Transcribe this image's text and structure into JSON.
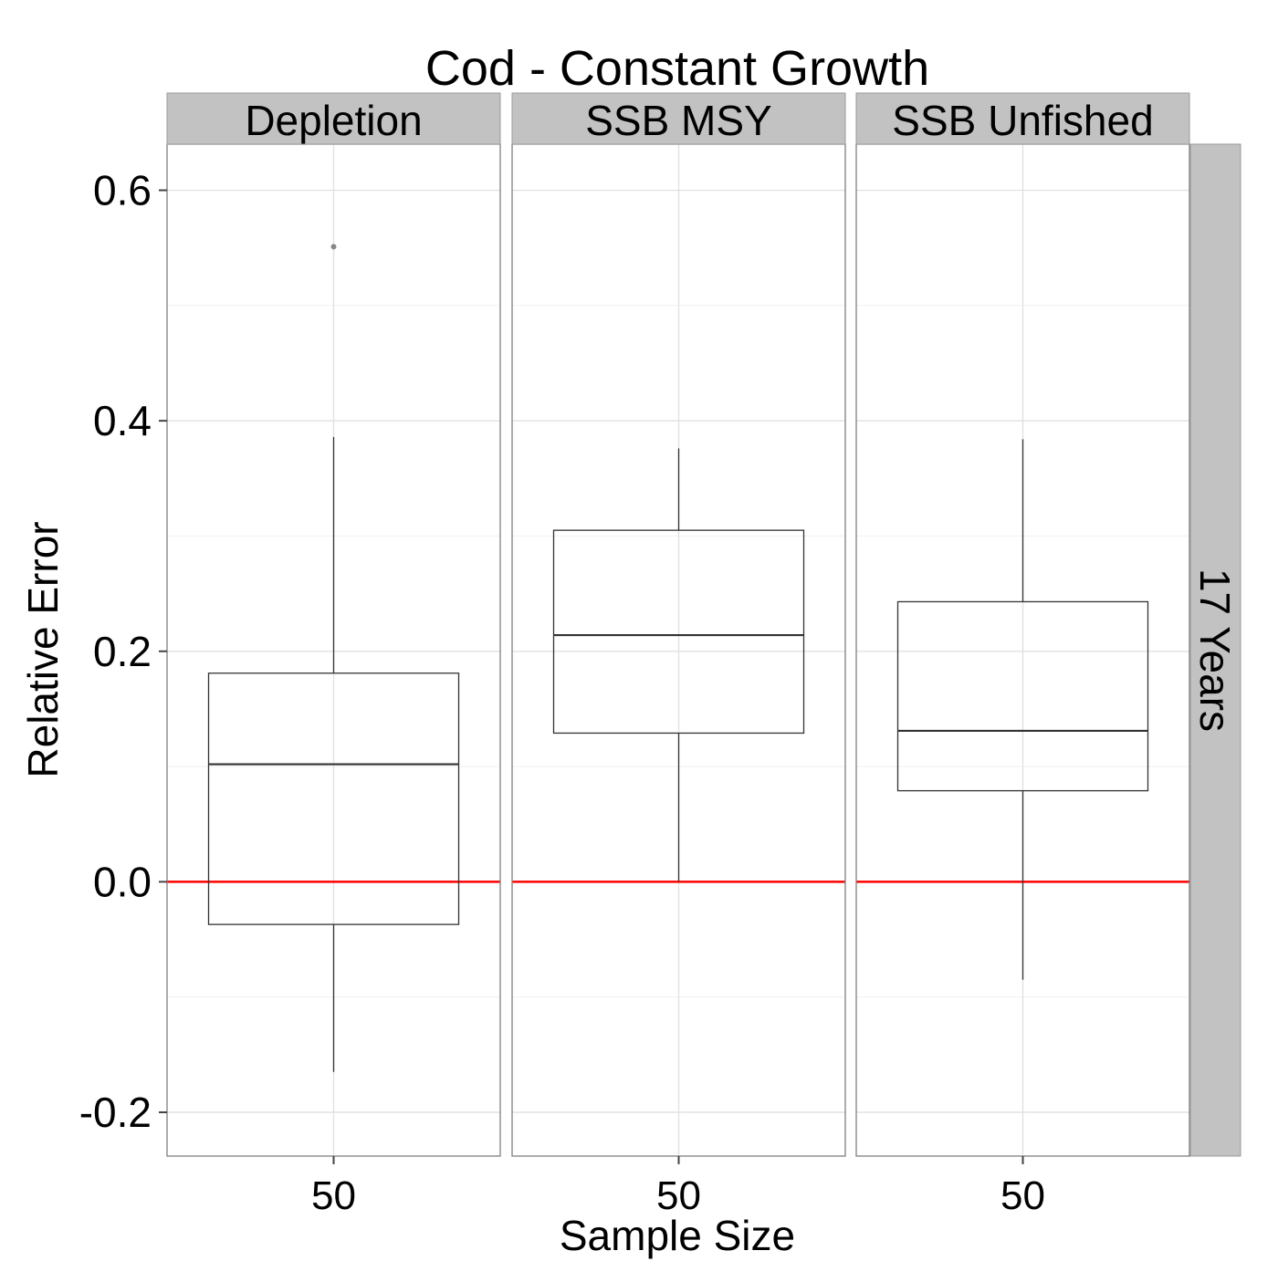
{
  "chart_data": {
    "type": "boxplot",
    "title": "Cod - Constant Growth",
    "xlabel": "Sample Size",
    "ylabel": "Relative Error",
    "row_strip": "17 Years",
    "ylim": [
      -0.238,
      0.64
    ],
    "y_ticks": [
      -0.2,
      0.0,
      0.2,
      0.4,
      0.6
    ],
    "y_tick_labels": [
      "-0.2",
      "0.0",
      "0.2",
      "0.4",
      "0.6"
    ],
    "x_category": "50",
    "reference_line": {
      "y": 0.0,
      "color": "#ff0000"
    },
    "grid": true,
    "panels": [
      {
        "name": "Depletion",
        "x_tick_label": "50",
        "box": {
          "whisker_low": -0.165,
          "q1": -0.037,
          "median": 0.102,
          "q3": 0.181,
          "whisker_high": 0.386
        },
        "outliers": [
          0.551
        ]
      },
      {
        "name": "SSB MSY",
        "x_tick_label": "50",
        "box": {
          "whisker_low": 0.0,
          "q1": 0.129,
          "median": 0.214,
          "q3": 0.305,
          "whisker_high": 0.376
        },
        "outliers": []
      },
      {
        "name": "SSB Unfished",
        "x_tick_label": "50",
        "box": {
          "whisker_low": -0.085,
          "q1": 0.079,
          "median": 0.131,
          "q3": 0.243,
          "whisker_high": 0.384
        },
        "outliers": []
      }
    ]
  }
}
